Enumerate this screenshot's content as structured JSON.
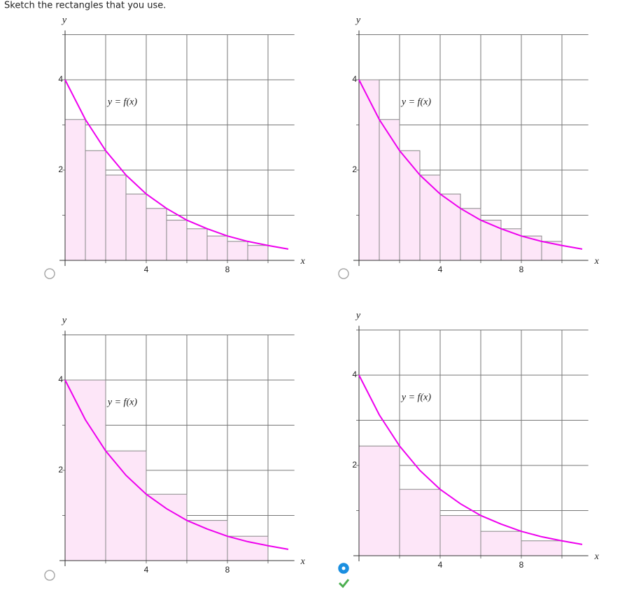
{
  "instruction": "Sketch the rectangles that you use.",
  "selected_option": 3,
  "chart_data": [
    {
      "type": "histogram",
      "bins": [
        0,
        1,
        2,
        3,
        4,
        5,
        6,
        7,
        8,
        9,
        10
      ],
      "values": [
        3.12,
        2.43,
        1.89,
        1.47,
        1.15,
        0.89,
        0.7,
        0.54,
        0.42,
        0.33
      ],
      "color": "#fde6f8",
      "xlabel": "x",
      "ylabel": "y",
      "xlim": [
        0,
        11.3
      ],
      "ylim": [
        0,
        5
      ],
      "xticks": [
        4,
        8
      ],
      "yticks": [
        2,
        4
      ],
      "xgrid": [
        2,
        4,
        6,
        8,
        10
      ],
      "ygrid": [
        1,
        2,
        3,
        4,
        5
      ],
      "curve": {
        "label": "y = f(x)",
        "color": "#ee00ee",
        "x": [
          0,
          1,
          2,
          3,
          4,
          5,
          6,
          7,
          8,
          9,
          10,
          11
        ],
        "y": [
          4,
          3.12,
          2.43,
          1.89,
          1.47,
          1.15,
          0.89,
          0.7,
          0.54,
          0.42,
          0.33,
          0.25
        ]
      }
    },
    {
      "type": "histogram",
      "bins": [
        0,
        1,
        2,
        3,
        4,
        5,
        6,
        7,
        8,
        9,
        10
      ],
      "values": [
        4,
        3.12,
        2.43,
        1.89,
        1.47,
        1.15,
        0.89,
        0.7,
        0.54,
        0.42
      ],
      "color": "#fde6f8",
      "xlabel": "x",
      "ylabel": "y",
      "xlim": [
        0,
        11.3
      ],
      "ylim": [
        0,
        5
      ],
      "xticks": [
        4,
        8
      ],
      "yticks": [
        2,
        4
      ],
      "xgrid": [
        2,
        4,
        6,
        8,
        10
      ],
      "ygrid": [
        1,
        2,
        3,
        4,
        5
      ],
      "curve": {
        "label": "y = f(x)",
        "color": "#ee00ee",
        "x": [
          0,
          1,
          2,
          3,
          4,
          5,
          6,
          7,
          8,
          9,
          10,
          11
        ],
        "y": [
          4,
          3.12,
          2.43,
          1.89,
          1.47,
          1.15,
          0.89,
          0.7,
          0.54,
          0.42,
          0.33,
          0.25
        ]
      }
    },
    {
      "type": "histogram",
      "bins": [
        0,
        2,
        4,
        6,
        8,
        10
      ],
      "values": [
        4,
        2.43,
        1.47,
        0.89,
        0.54
      ],
      "color": "#fde6f8",
      "xlabel": "x",
      "ylabel": "y",
      "xlim": [
        0,
        11.3
      ],
      "ylim": [
        0,
        5
      ],
      "xticks": [
        4,
        8
      ],
      "yticks": [
        2,
        4
      ],
      "xgrid": [
        2,
        4,
        6,
        8,
        10
      ],
      "ygrid": [
        1,
        2,
        3,
        4,
        5
      ],
      "curve": {
        "label": "y = f(x)",
        "color": "#ee00ee",
        "x": [
          0,
          1,
          2,
          3,
          4,
          5,
          6,
          7,
          8,
          9,
          10,
          11
        ],
        "y": [
          4,
          3.12,
          2.43,
          1.89,
          1.47,
          1.15,
          0.89,
          0.7,
          0.54,
          0.42,
          0.33,
          0.25
        ]
      }
    },
    {
      "type": "histogram",
      "bins": [
        0,
        2,
        4,
        6,
        8,
        10
      ],
      "values": [
        2.43,
        1.47,
        0.89,
        0.54,
        0.33
      ],
      "color": "#fde6f8",
      "xlabel": "x",
      "ylabel": "y",
      "xlim": [
        0,
        11.3
      ],
      "ylim": [
        0,
        5
      ],
      "xticks": [
        4,
        8
      ],
      "yticks": [
        2,
        4
      ],
      "xgrid": [
        2,
        4,
        6,
        8,
        10
      ],
      "ygrid": [
        1,
        2,
        3,
        4,
        5
      ],
      "curve": {
        "label": "y = f(x)",
        "color": "#ee00ee",
        "x": [
          0,
          1,
          2,
          3,
          4,
          5,
          6,
          7,
          8,
          9,
          10,
          11
        ],
        "y": [
          4,
          3.12,
          2.43,
          1.89,
          1.47,
          1.15,
          0.89,
          0.7,
          0.54,
          0.42,
          0.33,
          0.25
        ]
      }
    }
  ]
}
